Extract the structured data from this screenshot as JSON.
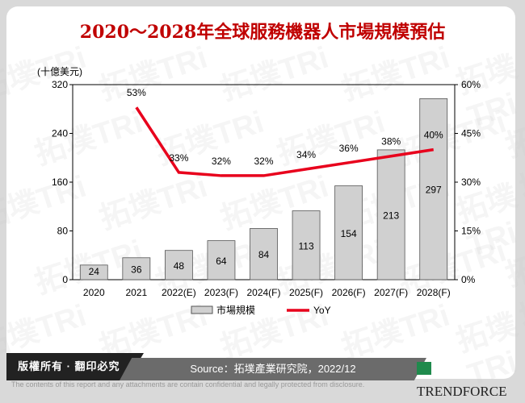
{
  "title": "2020～2028年全球服務機器人市場規模預估",
  "chart_data": {
    "type": "bar+line",
    "title": "2020～2028年全球服務機器人市場規模預估",
    "ylabel": "(十億美元)",
    "categories": [
      "2020",
      "2021",
      "2022(E)",
      "2023(F)",
      "2024(F)",
      "2025(F)",
      "2026(F)",
      "2027(F)",
      "2028(F)"
    ],
    "series": [
      {
        "name": "市場規模",
        "type": "bar",
        "axis": "left",
        "color": "#d0d0d0",
        "values": [
          24,
          36,
          48,
          64,
          84,
          113,
          154,
          213,
          297
        ],
        "labels": [
          "24",
          "36",
          "48",
          "64",
          "84",
          "113",
          "154",
          "213",
          "297"
        ]
      },
      {
        "name": "YoY",
        "type": "line",
        "axis": "right",
        "color": "#e8001c",
        "values": [
          null,
          53,
          33,
          32,
          32,
          34,
          36,
          38,
          40
        ],
        "labels": [
          "",
          "53%",
          "33%",
          "32%",
          "32%",
          "34%",
          "36%",
          "38%",
          "40%"
        ]
      }
    ],
    "ylim": [
      0,
      320
    ],
    "yticks": [
      "0",
      "80",
      "160",
      "240",
      "320"
    ],
    "y2lim": [
      0,
      60
    ],
    "y2ticks": [
      "0%",
      "15%",
      "30%",
      "45%",
      "60%"
    ],
    "legend": "bottom",
    "grid": false
  },
  "footer": {
    "copyright": "版權所有 · 翻印必究",
    "source": "Source：拓墣產業研究院，2022/12",
    "logo": "TRENDFORCE",
    "disclaimer": "The contents of this report and any attachments are contain confidential and legally protected from disclosure."
  }
}
